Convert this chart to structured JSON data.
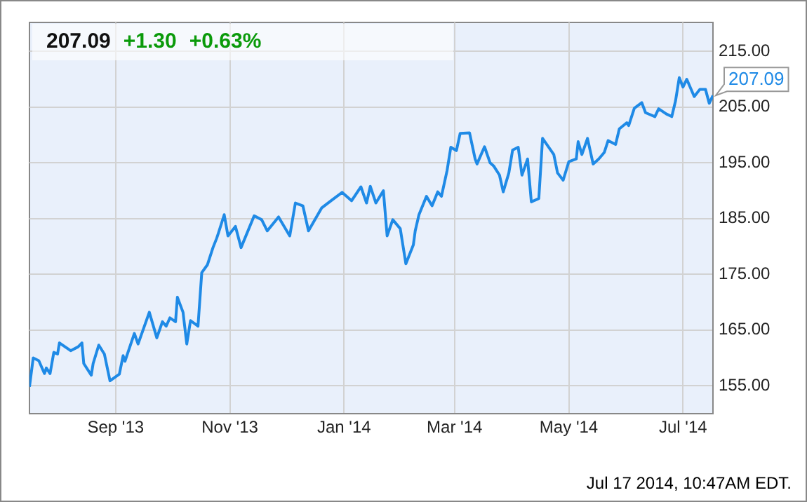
{
  "chart_data": {
    "type": "line",
    "title": "207.09 +1.30 +0.63%",
    "annotations": [
      "Jul 17 2014, 10:47AM EDT."
    ],
    "x": [
      "2013-07-17",
      "2013-07-19",
      "2013-07-22",
      "2013-07-25",
      "2013-07-26",
      "2013-07-28",
      "2013-07-30",
      "2013-08-01",
      "2013-08-02",
      "2013-08-08",
      "2013-08-12",
      "2013-08-14",
      "2013-08-15",
      "2013-08-19",
      "2013-08-20",
      "2013-08-23",
      "2013-08-26",
      "2013-08-29",
      "2013-09-03",
      "2013-09-05",
      "2013-09-06",
      "2013-09-11",
      "2013-09-13",
      "2013-09-19",
      "2013-09-23",
      "2013-09-26",
      "2013-09-28",
      "2013-09-30",
      "2013-10-03",
      "2013-10-04",
      "2013-10-07",
      "2013-10-09",
      "2013-10-11",
      "2013-10-15",
      "2013-10-17",
      "2013-10-20",
      "2013-10-23",
      "2013-10-25",
      "2013-10-26",
      "2013-10-29",
      "2013-10-31",
      "2013-11-04",
      "2013-11-07",
      "2013-11-14",
      "2013-11-18",
      "2013-11-21",
      "2013-11-27",
      "2013-12-03",
      "2013-12-06",
      "2013-12-10",
      "2013-12-13",
      "2013-12-20",
      "2013-12-25",
      "2013-12-31",
      "2014-01-05",
      "2014-01-10",
      "2014-01-13",
      "2014-01-15",
      "2014-01-18",
      "2014-01-22",
      "2014-01-24",
      "2014-01-27",
      "2014-01-31",
      "2014-02-03",
      "2014-02-07",
      "2014-02-08",
      "2014-02-10",
      "2014-02-14",
      "2014-02-17",
      "2014-02-20",
      "2014-02-22",
      "2014-02-25",
      "2014-02-27",
      "2014-03-02",
      "2014-03-04",
      "2014-03-09",
      "2014-03-12",
      "2014-03-13",
      "2014-03-17",
      "2014-03-20",
      "2014-03-22",
      "2014-03-25",
      "2014-03-27",
      "2014-03-30",
      "2014-04-01",
      "2014-04-04",
      "2014-04-06",
      "2014-04-09",
      "2014-04-11",
      "2014-04-15",
      "2014-04-17",
      "2014-04-23",
      "2014-04-25",
      "2014-04-28",
      "2014-05-01",
      "2014-05-05",
      "2014-05-06",
      "2014-05-08",
      "2014-05-11",
      "2014-05-14",
      "2014-05-17",
      "2014-05-20",
      "2014-05-22",
      "2014-05-26",
      "2014-05-28",
      "2014-06-01",
      "2014-06-02",
      "2014-06-05",
      "2014-06-09",
      "2014-06-11",
      "2014-06-16",
      "2014-06-18",
      "2014-06-22",
      "2014-06-25",
      "2014-06-27",
      "2014-06-29",
      "2014-07-01",
      "2014-07-03",
      "2014-07-07",
      "2014-07-10",
      "2014-07-13",
      "2014-07-15",
      "2014-07-17"
    ],
    "series": [
      {
        "color": "#1f8ae6",
        "values": [
          154.8,
          160,
          159.5,
          157.2,
          158.2,
          157.2,
          161,
          160.7,
          162.7,
          161.3,
          162,
          162.7,
          159,
          156.9,
          159,
          162.3,
          160.7,
          155.9,
          157.1,
          160.4,
          159.4,
          164.4,
          162.5,
          168.2,
          163.6,
          166.5,
          165.7,
          167.2,
          166.5,
          170.9,
          168.2,
          162.5,
          166.7,
          165.7,
          175.3,
          176.7,
          179.8,
          181.5,
          182.5,
          185.7,
          181.9,
          183.6,
          179.8,
          185.5,
          184.8,
          182.8,
          185.3,
          181.9,
          187.8,
          187.3,
          182.8,
          186.9,
          188.2,
          189.7,
          188.2,
          190.7,
          187.8,
          190.8,
          187.8,
          190,
          181.9,
          184.8,
          183.2,
          176.9,
          180.3,
          182.8,
          185.7,
          189,
          187.3,
          189.8,
          189,
          193.6,
          197.8,
          197.2,
          200.3,
          200.4,
          195.7,
          194.8,
          197.9,
          195,
          194.4,
          192.8,
          189.8,
          193.2,
          197.3,
          197.8,
          192.8,
          195.7,
          188,
          188.6,
          199.4,
          196.5,
          193.2,
          191.9,
          195.2,
          195.7,
          198.8,
          196.5,
          199.4,
          194.8,
          195.7,
          196.9,
          199,
          198.3,
          201.1,
          202.2,
          201.7,
          204.8,
          205.8,
          204,
          203.3,
          204.7,
          203.8,
          203.3,
          206.1,
          210.3,
          208.6,
          210,
          206.9,
          208.2,
          208.2,
          205.7,
          207.09
        ],
        "value_labels": [
          null,
          null,
          null,
          null,
          null,
          null,
          null,
          null,
          null,
          null,
          null,
          null,
          null,
          null,
          null,
          null,
          null,
          null,
          null,
          null,
          null,
          null,
          null,
          null,
          null,
          null,
          null,
          null,
          null,
          null,
          null,
          null,
          null,
          null,
          null,
          null,
          null,
          null,
          null,
          null,
          null,
          null,
          null,
          null,
          null,
          null,
          null,
          null,
          null,
          null,
          null,
          null,
          null,
          null,
          null,
          null,
          null,
          null,
          null,
          null,
          null,
          null,
          null,
          null,
          null,
          null,
          null,
          null,
          null,
          null,
          null,
          null,
          null,
          null,
          null,
          null,
          null,
          null,
          null,
          null,
          null,
          null,
          null,
          null,
          null,
          null,
          null,
          null,
          null,
          null,
          null,
          null,
          null,
          null,
          null,
          null,
          null,
          null,
          null,
          null,
          null,
          null,
          null,
          null,
          null,
          null,
          null,
          null,
          null,
          null,
          null,
          null,
          null,
          null,
          null,
          null,
          null,
          null,
          null,
          null,
          null,
          null,
          "207.09"
        ]
      }
    ],
    "xlim": [
      "2013-07-17",
      "2014-07-17"
    ],
    "xticks": [
      {
        "value": "2013-09-01",
        "label": "Sep '13"
      },
      {
        "value": "2013-11-01",
        "label": "Nov '13"
      },
      {
        "value": "2014-01-01",
        "label": "Jan '14"
      },
      {
        "value": "2014-03-01",
        "label": "Mar '14"
      },
      {
        "value": "2014-05-01",
        "label": "May '14"
      },
      {
        "value": "2014-07-01",
        "label": "Jul '14"
      }
    ],
    "ylim": [
      150,
      220.2
    ],
    "yticks": [
      {
        "value": 155,
        "label": "155.00"
      },
      {
        "value": 165,
        "label": "165.00"
      },
      {
        "value": 175,
        "label": "175.00"
      },
      {
        "value": 185,
        "label": "185.00"
      },
      {
        "value": 195,
        "label": "195.00"
      },
      {
        "value": 205,
        "label": "205.00"
      },
      {
        "value": 215,
        "label": "215.00"
      }
    ],
    "grid": true,
    "legend": false,
    "marker": "none",
    "line_style": "solid"
  }
}
